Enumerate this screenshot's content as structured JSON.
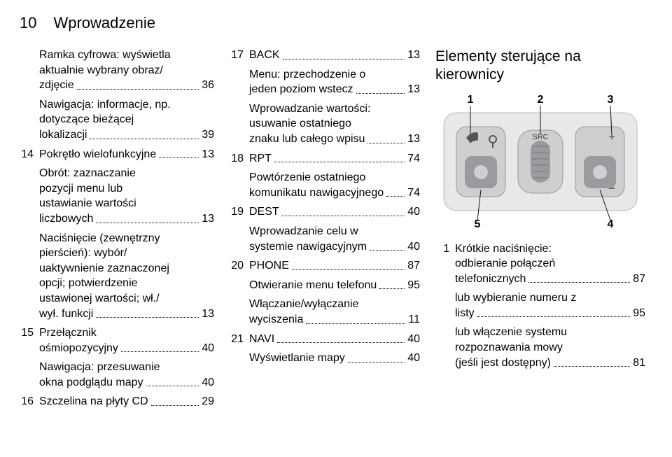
{
  "page_number": "10",
  "page_title": "Wprowadzenie",
  "col1": {
    "e1": {
      "t1": "Ramka cyfrowa: wyświetla",
      "t2": "aktualnie wybrany obraz/",
      "t3": "zdjęcie",
      "p": "36"
    },
    "e2": {
      "t1": "Nawigacja: informacje, np.",
      "t2": "dotyczące bieżącej",
      "t3": "lokalizacji",
      "p": "39"
    },
    "e3": {
      "n": "14",
      "t": "Pokrętło wielofunkcyjne",
      "p": "13"
    },
    "e4": {
      "t1": "Obrót: zaznaczanie",
      "t2": "pozycji menu lub",
      "t3": "ustawianie wartości",
      "t4": "liczbowych",
      "p": "13"
    },
    "e5": {
      "t1": "Naciśnięcie (zewnętrzny",
      "t2": "pierścień): wybór/",
      "t3": "uaktywnienie zaznaczonej",
      "t4": "opcji; potwierdzenie",
      "t5": "ustawionej wartości; wł./",
      "t6": "wył. funkcji",
      "p": "13"
    },
    "e6": {
      "n": "15",
      "t1": "Przełącznik",
      "t2": "ośmiopozycyjny",
      "p": "40"
    },
    "e7": {
      "t1": "Nawigacja: przesuwanie",
      "t2": "okna podglądu mapy",
      "p": "40"
    },
    "e8": {
      "n": "16",
      "t": "Szczelina na płyty CD",
      "p": "29"
    }
  },
  "col2": {
    "e1": {
      "n": "17",
      "t": "BACK",
      "p": "13"
    },
    "e2": {
      "t1": "Menu: przechodzenie o",
      "t2": "jeden poziom wstecz",
      "p": "13"
    },
    "e3": {
      "t1": "Wprowadzanie wartości:",
      "t2": "usuwanie ostatniego",
      "t3": "znaku lub całego wpisu",
      "p": "13"
    },
    "e4": {
      "n": "18",
      "t": "RPT",
      "p": "74"
    },
    "e5": {
      "t1": "Powtórzenie ostatniego",
      "t2": "komunikatu nawigacyjnego",
      "p": "74"
    },
    "e6": {
      "n": "19",
      "t": "DEST",
      "p": "40"
    },
    "e7": {
      "t1": "Wprowadzanie celu w",
      "t2": "systemie nawigacyjnym",
      "p": "40"
    },
    "e8": {
      "n": "20",
      "t": "PHONE",
      "p": "87"
    },
    "e9": {
      "t": "Otwieranie menu telefonu",
      "p": "95"
    },
    "e10": {
      "t1": "Włączanie/wyłączanie",
      "t2": "wyciszenia",
      "p": "11"
    },
    "e11": {
      "n": "21",
      "t": "NAVI",
      "p": "40"
    },
    "e12": {
      "t": "Wyświetlanie mapy",
      "p": "40"
    }
  },
  "col3": {
    "title1": "Elementy sterujące na",
    "title2": "kierownicy",
    "diagram": {
      "labels": [
        "1",
        "2",
        "3",
        "4",
        "5"
      ],
      "bg": "#e8e8ea",
      "btn": "#cfcfd2",
      "btn_dark": "#9b9b9f",
      "line": "#111111"
    },
    "e1": {
      "n": "1",
      "t1": "Krótkie naciśnięcie:",
      "t2": "odbieranie połączeń",
      "t3": "telefonicznych",
      "p": "87"
    },
    "e2": {
      "t1": "lub wybieranie numeru z",
      "t2": "listy",
      "p": "95"
    },
    "e3": {
      "t1": "lub włączenie systemu",
      "t2": "rozpoznawania mowy",
      "t3": "(jeśli jest dostępny)",
      "p": "81"
    }
  }
}
